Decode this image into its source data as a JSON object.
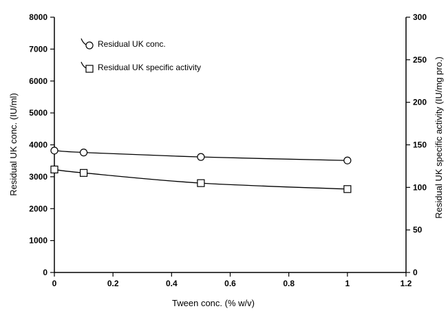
{
  "chart_data": {
    "type": "line",
    "title": "",
    "xlabel": "Tween conc. (% w/v)",
    "ylabel_left": "Residual UK conc. (IU/ml)",
    "ylabel_right": "Residual UK specific activity (IU/mg pro.)",
    "xlim": [
      0,
      1.2
    ],
    "ylim_left": [
      0,
      8000
    ],
    "ylim_right": [
      0,
      300
    ],
    "x_ticks": [
      "0",
      "0.2",
      "0.4",
      "0.6",
      "0.8",
      "1",
      "1.2"
    ],
    "y_left_ticks": [
      "0",
      "1000",
      "2000",
      "3000",
      "4000",
      "5000",
      "6000",
      "7000",
      "8000"
    ],
    "y_right_ticks": [
      "0",
      "50",
      "100",
      "150",
      "200",
      "250",
      "300"
    ],
    "grid": false,
    "legend_position": "top-left",
    "series": [
      {
        "name": "Residual UK conc.",
        "axis": "left",
        "marker": "circle",
        "x": [
          0,
          0.1,
          0.5,
          1
        ],
        "values": [
          3820,
          3760,
          3620,
          3510
        ]
      },
      {
        "name": "Residual UK specific activity",
        "axis": "right",
        "marker": "square",
        "x": [
          0,
          0.1,
          0.5,
          1
        ],
        "values": [
          121,
          117,
          105,
          98
        ]
      }
    ]
  }
}
